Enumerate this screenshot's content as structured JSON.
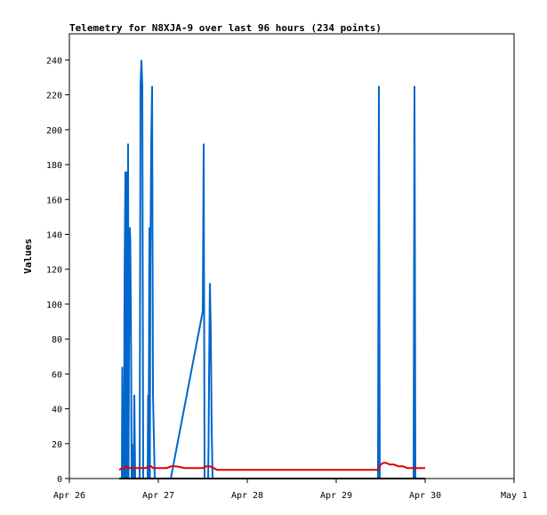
{
  "chart_data": {
    "type": "line",
    "title": "Telemetry for N8XJA-9 over last 96 hours (234 points)",
    "xlabel": "",
    "ylabel": "Values",
    "x_ticks": [
      "Apr 26",
      "Apr 27",
      "Apr 28",
      "Apr 29",
      "Apr 30",
      "May 1"
    ],
    "xlim": [
      "Apr 26",
      "May 1"
    ],
    "ylim": [
      0,
      255
    ],
    "y_ticks": [
      0,
      20,
      40,
      60,
      80,
      100,
      120,
      140,
      160,
      180,
      200,
      220,
      240
    ],
    "grid": false,
    "series": [
      {
        "color": "#0066cc",
        "x_days": [
          0.56,
          0.59,
          0.595,
          0.6,
          0.61,
          0.615,
          0.62,
          0.63,
          0.635,
          0.64,
          0.645,
          0.65,
          0.655,
          0.66,
          0.665,
          0.67,
          0.68,
          0.685,
          0.69,
          0.695,
          0.7,
          0.705,
          0.71,
          0.72,
          0.725,
          0.73,
          0.735,
          0.74,
          0.75,
          0.76,
          0.77,
          0.78,
          0.79,
          0.8,
          0.81,
          0.82,
          0.83,
          0.84,
          0.85,
          0.86,
          0.87,
          0.88,
          0.885,
          0.89,
          0.895,
          0.9,
          0.905,
          0.91,
          0.92,
          0.93,
          0.94,
          0.95,
          0.96,
          0.97,
          0.98,
          0.99,
          1.0,
          1.01,
          1.02,
          1.03,
          1.04,
          1.05,
          1.06,
          1.065,
          1.07,
          1.075,
          1.08,
          1.085,
          1.09,
          1.1,
          1.11,
          1.12,
          1.13,
          1.14,
          1.5,
          1.51,
          1.515,
          1.52,
          1.53,
          1.55,
          1.56,
          1.565,
          1.57,
          1.58,
          1.59,
          1.6,
          1.61,
          1.62,
          3.47,
          3.48,
          3.485,
          3.49,
          3.5,
          3.87,
          3.88,
          3.885,
          3.89,
          3.9,
          3.91
        ],
        "values": [
          0,
          0,
          64,
          0,
          32,
          0,
          112,
          176,
          0,
          176,
          64,
          0,
          64,
          192,
          0,
          72,
          144,
          136,
          104,
          64,
          0,
          20,
          0,
          0,
          0,
          48,
          24,
          0,
          0,
          0,
          0,
          0,
          0,
          225,
          240,
          225,
          0,
          0,
          0,
          0,
          0,
          0,
          48,
          0,
          72,
          144,
          0,
          120,
          192,
          225,
          48,
          24,
          0,
          0,
          0,
          0,
          0,
          0,
          0,
          0,
          0,
          0,
          0,
          0,
          0,
          0,
          0,
          0,
          0,
          0,
          0,
          0,
          0,
          0,
          96,
          192,
          96,
          0,
          0,
          0,
          0,
          20,
          56,
          112,
          84,
          28,
          0,
          0,
          0,
          225,
          112,
          0,
          0,
          0,
          225,
          128,
          0,
          0,
          0
        ]
      },
      {
        "color": "#dd0000",
        "x_days": [
          0.56,
          0.6,
          0.62,
          0.64,
          0.66,
          0.68,
          0.7,
          0.74,
          0.78,
          0.82,
          0.86,
          0.9,
          0.92,
          0.94,
          0.98,
          1.02,
          1.06,
          1.1,
          1.14,
          1.2,
          1.3,
          1.4,
          1.46,
          1.5,
          1.54,
          1.58,
          1.62,
          1.66,
          1.7,
          1.8,
          1.9,
          2.0,
          2.2,
          2.4,
          2.6,
          2.8,
          3.0,
          3.2,
          3.4,
          3.47,
          3.5,
          3.53,
          3.56,
          3.6,
          3.65,
          3.7,
          3.75,
          3.8,
          3.85,
          3.9,
          3.95,
          4.0
        ],
        "values": [
          5,
          6,
          6,
          7,
          6,
          6,
          6,
          6,
          6,
          6,
          6,
          7,
          7,
          6,
          6,
          6,
          6,
          6,
          7,
          7,
          6,
          6,
          6,
          6,
          7,
          7,
          6,
          5,
          5,
          5,
          5,
          5,
          5,
          5,
          5,
          5,
          5,
          5,
          5,
          5,
          8,
          9,
          9,
          8,
          8,
          7,
          7,
          6,
          6,
          6,
          6,
          6
        ]
      },
      {
        "color": "#000000",
        "x_days": [
          0.56,
          4.0
        ],
        "values": [
          0,
          0
        ]
      }
    ]
  }
}
